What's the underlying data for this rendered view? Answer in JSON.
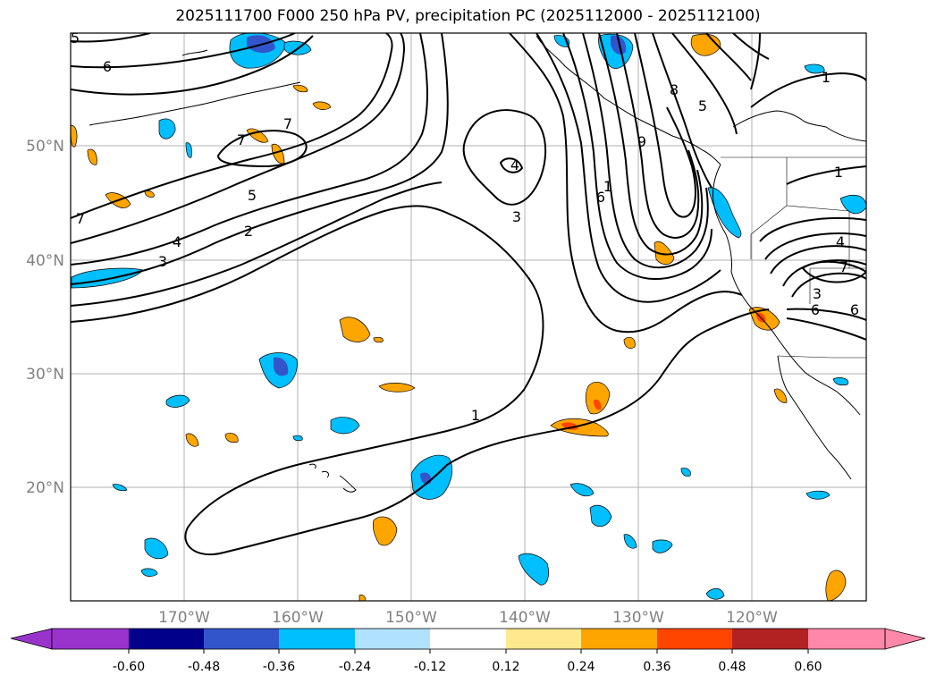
{
  "title": "2025111700 F000 250 hPa PV, precipitation PC (2025112000 - 2025112100)",
  "latitude_labels": [
    "50°N",
    "40°N",
    "30°N",
    "20°N"
  ],
  "longitude_labels": [
    "170°W",
    "160°W",
    "150°W",
    "140°W",
    "130°W",
    "120°W"
  ],
  "colorbar": {
    "ticks": [
      "-0.60",
      "-0.48",
      "-0.36",
      "-0.24",
      "-0.12",
      "0.12",
      "0.24",
      "0.36",
      "0.48",
      "0.60"
    ],
    "colors": [
      "#9933cc",
      "#00008b",
      "#3355cc",
      "#00bfff",
      "#b0e2ff",
      "#ffffff",
      "#ffe98c",
      "#ffa500",
      "#ff4500",
      "#b22222",
      "#ff88aa"
    ]
  },
  "contour_labels": [
    "5",
    "6",
    "7",
    "7",
    "7",
    "5",
    "4",
    "3",
    "2",
    "4",
    "3",
    "1",
    "1",
    "9",
    "6",
    "8",
    "5",
    "1",
    "1",
    "7",
    "6",
    "6",
    "4",
    "3"
  ],
  "map_extent": {
    "lon_min": -180,
    "lon_max": -110,
    "lat_min": 10,
    "lat_max": 60
  }
}
